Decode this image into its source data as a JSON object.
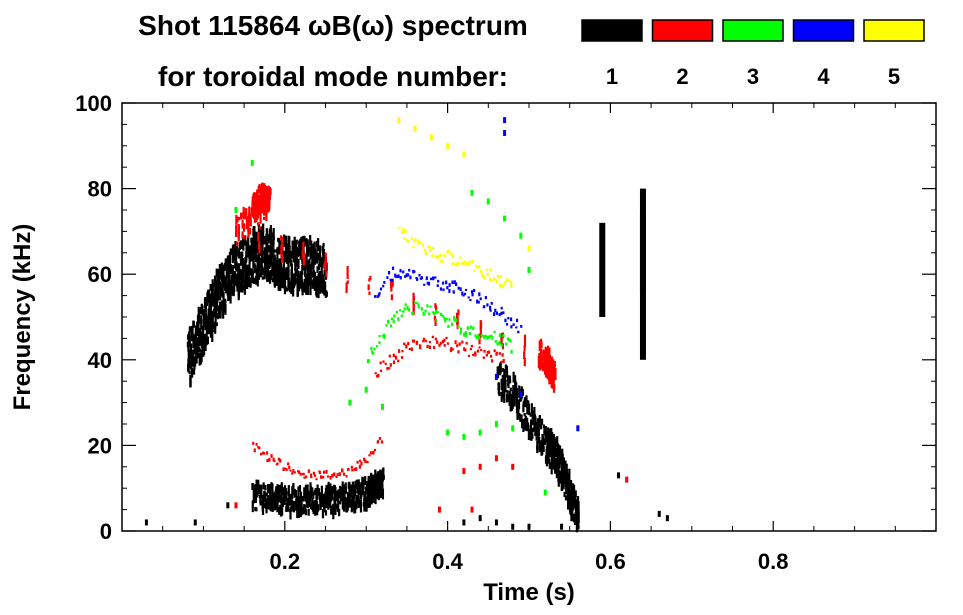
{
  "chart_data": {
    "type": "heatmap",
    "title_line1": "Shot 115864 ωB(ω) spectrum",
    "title_line2": "for toroidal mode number:",
    "xlabel": "Time (s)",
    "ylabel": "Frequency (kHz)",
    "xlim": [
      0.0,
      1.0
    ],
    "ylim": [
      0,
      100
    ],
    "x_ticks": [
      0.2,
      0.4,
      0.6,
      0.8
    ],
    "x_tick_labels": [
      "0.2",
      "0.4",
      "0.6",
      "0.8"
    ],
    "y_ticks": [
      0,
      20,
      40,
      60,
      80,
      100
    ],
    "y_tick_labels": [
      "0",
      "20",
      "40",
      "60",
      "80",
      "100"
    ],
    "legend_placement": "top-right",
    "legend": [
      {
        "label": "1",
        "color": "#000000"
      },
      {
        "label": "2",
        "color": "#ff0000"
      },
      {
        "label": "3",
        "color": "#00ff00"
      },
      {
        "label": "4",
        "color": "#0000ff"
      },
      {
        "label": "5",
        "color": "#ffff00"
      }
    ],
    "series": [
      {
        "mode": 1,
        "color": "#000000",
        "kind": "blob",
        "points": [
          [
            0.08,
            40
          ],
          [
            0.09,
            44
          ],
          [
            0.1,
            48
          ],
          [
            0.11,
            52
          ],
          [
            0.12,
            56
          ],
          [
            0.13,
            59
          ],
          [
            0.14,
            61
          ],
          [
            0.15,
            62
          ],
          [
            0.16,
            64
          ],
          [
            0.17,
            65
          ],
          [
            0.18,
            65
          ],
          [
            0.19,
            63
          ],
          [
            0.2,
            62
          ],
          [
            0.21,
            62
          ],
          [
            0.22,
            62
          ],
          [
            0.23,
            62
          ],
          [
            0.24,
            61
          ],
          [
            0.25,
            61
          ]
        ],
        "spread": 6
      },
      {
        "mode": 1,
        "color": "#000000",
        "kind": "blob",
        "points": [
          [
            0.16,
            8
          ],
          [
            0.18,
            8
          ],
          [
            0.2,
            7
          ],
          [
            0.22,
            7
          ],
          [
            0.24,
            7
          ],
          [
            0.26,
            7
          ],
          [
            0.28,
            8
          ],
          [
            0.3,
            9
          ],
          [
            0.31,
            10
          ],
          [
            0.32,
            11
          ]
        ],
        "spread": 3
      },
      {
        "mode": 1,
        "color": "#000000",
        "kind": "blob",
        "points": [
          [
            0.46,
            36
          ],
          [
            0.48,
            32
          ],
          [
            0.5,
            26
          ],
          [
            0.52,
            20
          ],
          [
            0.53,
            18
          ],
          [
            0.54,
            14
          ],
          [
            0.55,
            8
          ],
          [
            0.56,
            3
          ]
        ],
        "spread": 4
      },
      {
        "mode": 1,
        "color": "#000000",
        "kind": "vbar",
        "points": [
          [
            0.59,
            50,
            72
          ],
          [
            0.64,
            56,
            74
          ],
          [
            0.64,
            40,
            80
          ]
        ],
        "spread": 0
      },
      {
        "mode": 1,
        "color": "#000000",
        "kind": "dots",
        "points": [
          [
            0.03,
            2
          ],
          [
            0.09,
            2
          ],
          [
            0.13,
            6
          ],
          [
            0.42,
            2
          ],
          [
            0.44,
            3
          ],
          [
            0.46,
            2
          ],
          [
            0.48,
            1
          ],
          [
            0.5,
            1
          ],
          [
            0.54,
            1
          ],
          [
            0.56,
            1
          ],
          [
            0.61,
            13
          ],
          [
            0.67,
            3
          ],
          [
            0.66,
            4
          ]
        ],
        "spread": 1
      },
      {
        "mode": 2,
        "color": "#ff0000",
        "kind": "line",
        "points": [
          [
            0.16,
            20
          ],
          [
            0.18,
            17
          ],
          [
            0.2,
            15
          ],
          [
            0.22,
            13
          ],
          [
            0.24,
            13
          ],
          [
            0.26,
            13
          ],
          [
            0.28,
            14
          ],
          [
            0.3,
            17
          ],
          [
            0.32,
            22
          ]
        ],
        "spread": 1
      },
      {
        "mode": 2,
        "color": "#ff0000",
        "kind": "line",
        "points": [
          [
            0.31,
            37
          ],
          [
            0.33,
            40
          ],
          [
            0.35,
            43
          ],
          [
            0.37,
            44
          ],
          [
            0.39,
            44
          ],
          [
            0.41,
            43
          ],
          [
            0.43,
            42
          ],
          [
            0.45,
            41
          ],
          [
            0.47,
            40
          ]
        ],
        "spread": 1.5
      },
      {
        "mode": 2,
        "color": "#ff0000",
        "kind": "blob",
        "points": [
          [
            0.16,
            76
          ],
          [
            0.17,
            78
          ],
          [
            0.18,
            77
          ],
          [
            0.14,
            70
          ],
          [
            0.52,
            40
          ],
          [
            0.53,
            36
          ],
          [
            0.51,
            42
          ]
        ],
        "spread": 3
      },
      {
        "mode": 2,
        "color": "#ff0000",
        "kind": "dots",
        "points": [
          [
            0.14,
            6
          ],
          [
            0.42,
            14
          ],
          [
            0.44,
            15
          ],
          [
            0.46,
            17
          ],
          [
            0.48,
            15
          ],
          [
            0.43,
            5
          ],
          [
            0.39,
            5
          ],
          [
            0.62,
            12
          ]
        ],
        "spread": 1
      },
      {
        "mode": 3,
        "color": "#00ff00",
        "kind": "line",
        "points": [
          [
            0.3,
            40
          ],
          [
            0.32,
            46
          ],
          [
            0.34,
            51
          ],
          [
            0.36,
            52
          ],
          [
            0.38,
            51
          ],
          [
            0.4,
            49
          ],
          [
            0.42,
            47
          ],
          [
            0.44,
            46
          ],
          [
            0.46,
            45
          ],
          [
            0.48,
            43
          ]
        ],
        "spread": 1.5
      },
      {
        "mode": 3,
        "color": "#00ff00",
        "kind": "dots",
        "points": [
          [
            0.28,
            30
          ],
          [
            0.3,
            33
          ],
          [
            0.32,
            29
          ],
          [
            0.4,
            23
          ],
          [
            0.42,
            22
          ],
          [
            0.44,
            23
          ],
          [
            0.46,
            25
          ],
          [
            0.48,
            24
          ],
          [
            0.43,
            79
          ],
          [
            0.45,
            77
          ],
          [
            0.47,
            73
          ],
          [
            0.49,
            69
          ],
          [
            0.5,
            61
          ],
          [
            0.14,
            75
          ],
          [
            0.16,
            86
          ],
          [
            0.52,
            9
          ]
        ],
        "spread": 1
      },
      {
        "mode": 4,
        "color": "#0000ff",
        "kind": "line",
        "points": [
          [
            0.31,
            55
          ],
          [
            0.33,
            60
          ],
          [
            0.35,
            61
          ],
          [
            0.37,
            59
          ],
          [
            0.39,
            58
          ],
          [
            0.41,
            57
          ],
          [
            0.43,
            55
          ],
          [
            0.45,
            53
          ],
          [
            0.47,
            50
          ],
          [
            0.49,
            47
          ]
        ],
        "spread": 1.5
      },
      {
        "mode": 4,
        "color": "#0000ff",
        "kind": "dots",
        "points": [
          [
            0.47,
            96
          ],
          [
            0.47,
            93
          ],
          [
            0.46,
            36
          ],
          [
            0.56,
            24
          ],
          [
            0.49,
            32
          ]
        ],
        "spread": 1
      },
      {
        "mode": 5,
        "color": "#ffff00",
        "kind": "line",
        "points": [
          [
            0.34,
            70
          ],
          [
            0.36,
            67
          ],
          [
            0.38,
            65
          ],
          [
            0.4,
            64
          ],
          [
            0.42,
            63
          ],
          [
            0.44,
            61
          ],
          [
            0.46,
            59
          ],
          [
            0.48,
            57
          ]
        ],
        "spread": 1.5
      },
      {
        "mode": 5,
        "color": "#ffff00",
        "kind": "dots",
        "points": [
          [
            0.34,
            96
          ],
          [
            0.36,
            94
          ],
          [
            0.38,
            92
          ],
          [
            0.4,
            90
          ],
          [
            0.42,
            88
          ],
          [
            0.5,
            66
          ]
        ],
        "spread": 1
      }
    ]
  }
}
